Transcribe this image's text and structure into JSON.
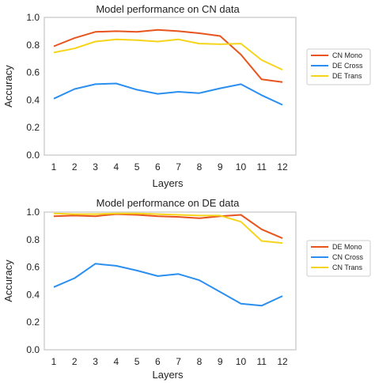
{
  "chart_data": [
    {
      "type": "line",
      "title": "Model performance on CN data",
      "xlabel": "Layers",
      "ylabel": "Accuracy",
      "x": [
        1,
        2,
        3,
        4,
        5,
        6,
        7,
        8,
        9,
        10,
        11,
        12
      ],
      "ylim": [
        0.0,
        1.0
      ],
      "yticks": [
        "0.0",
        "0.2",
        "0.4",
        "0.6",
        "0.8",
        "1.0"
      ],
      "xticks": [
        "1",
        "2",
        "3",
        "4",
        "5",
        "6",
        "7",
        "8",
        "9",
        "10",
        "11",
        "12"
      ],
      "grid": false,
      "legend_position": "right",
      "series": [
        {
          "name": "CN Mono",
          "color": "#e8541e",
          "values": [
            0.79,
            0.85,
            0.895,
            0.9,
            0.895,
            0.91,
            0.9,
            0.885,
            0.865,
            0.73,
            0.55,
            0.53
          ]
        },
        {
          "name": "DE Cross",
          "color": "#2a8ff0",
          "values": [
            0.41,
            0.48,
            0.515,
            0.52,
            0.475,
            0.445,
            0.46,
            0.45,
            0.485,
            0.515,
            0.435,
            0.365
          ]
        },
        {
          "name": "DE Trans",
          "color": "#f5d419",
          "values": [
            0.745,
            0.775,
            0.825,
            0.84,
            0.835,
            0.825,
            0.84,
            0.81,
            0.805,
            0.81,
            0.69,
            0.62
          ]
        }
      ]
    },
    {
      "type": "line",
      "title": "Model performance on DE data",
      "xlabel": "Layers",
      "ylabel": "Accuracy",
      "x": [
        1,
        2,
        3,
        4,
        5,
        6,
        7,
        8,
        9,
        10,
        11,
        12
      ],
      "ylim": [
        0.0,
        1.0
      ],
      "yticks": [
        "0.0",
        "0.2",
        "0.4",
        "0.6",
        "0.8",
        "1.0"
      ],
      "xticks": [
        "1",
        "2",
        "3",
        "4",
        "5",
        "6",
        "7",
        "8",
        "9",
        "10",
        "11",
        "12"
      ],
      "grid": false,
      "legend_position": "right",
      "series": [
        {
          "name": "DE Mono",
          "color": "#e8541e",
          "values": [
            0.97,
            0.975,
            0.97,
            0.985,
            0.98,
            0.97,
            0.965,
            0.955,
            0.97,
            0.98,
            0.875,
            0.81
          ]
        },
        {
          "name": "CN Cross",
          "color": "#2a8ff0",
          "values": [
            0.455,
            0.52,
            0.625,
            0.61,
            0.575,
            0.535,
            0.55,
            0.505,
            0.42,
            0.335,
            0.32,
            0.39
          ]
        },
        {
          "name": "CN Trans",
          "color": "#f5d419",
          "values": [
            0.99,
            0.985,
            0.985,
            0.99,
            0.99,
            0.985,
            0.98,
            0.975,
            0.975,
            0.93,
            0.79,
            0.775
          ]
        }
      ]
    }
  ]
}
